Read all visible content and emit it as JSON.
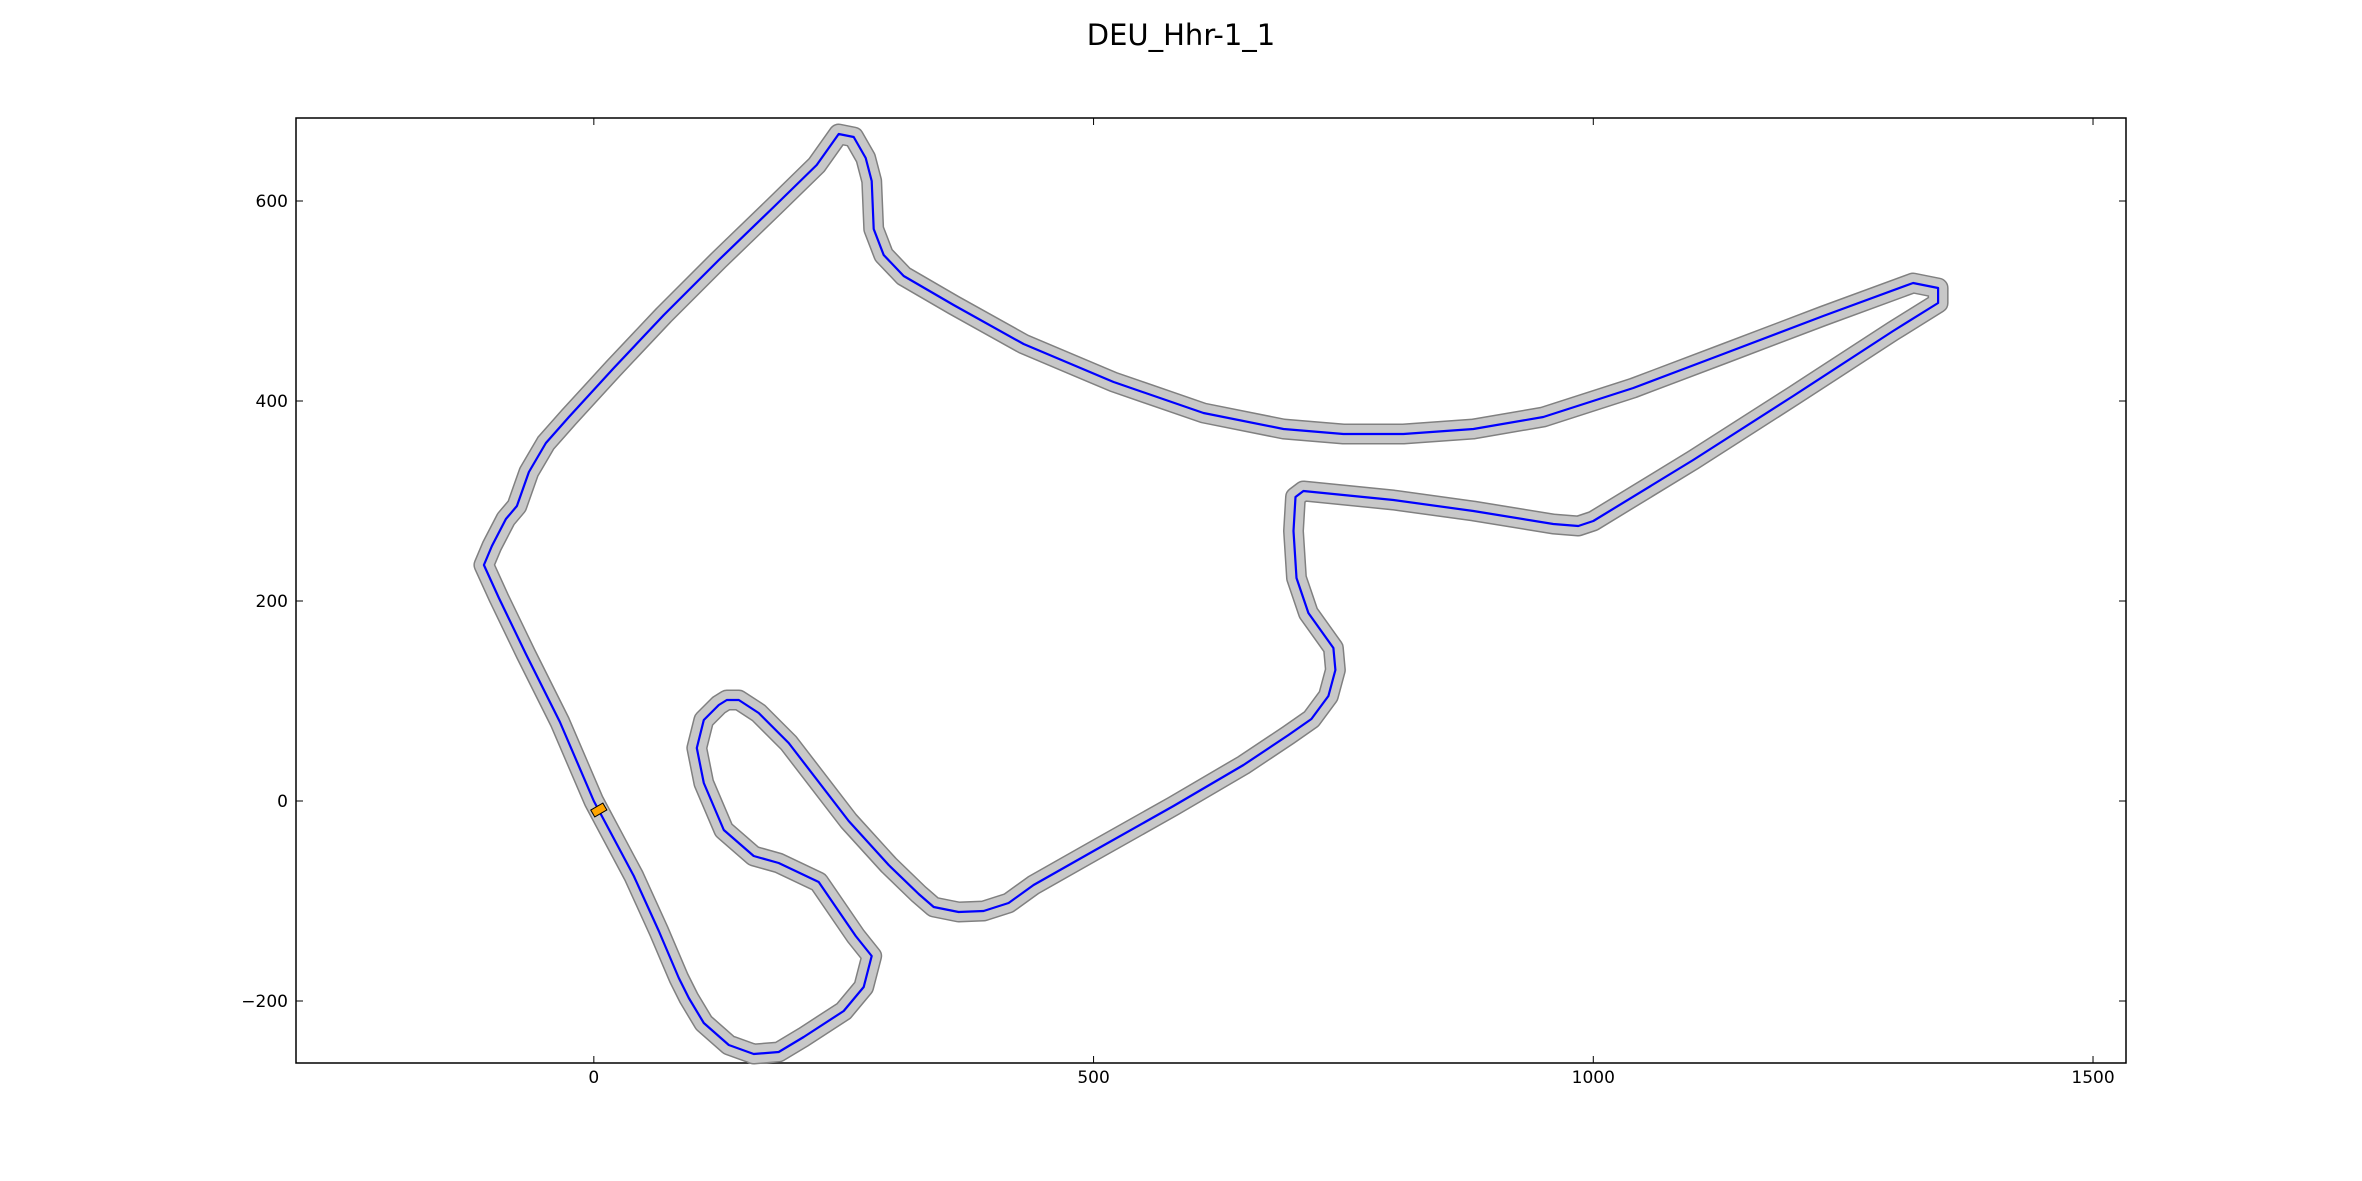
{
  "chart_data": {
    "type": "line",
    "title": "DEU_Hhr-1_1",
    "xlabel": "",
    "ylabel": "",
    "xlim": [
      -298,
      1533
    ],
    "ylim": [
      -262,
      683
    ],
    "xticks": [
      0,
      500,
      1000,
      1500
    ],
    "yticks": [
      -200,
      0,
      200,
      400,
      600
    ],
    "xtick_labels": [
      "0",
      "500",
      "1000",
      "1500"
    ],
    "ytick_labels": [
      "−200",
      "0",
      "200",
      "400",
      "600"
    ],
    "grid": false,
    "legend": "none",
    "colors": {
      "centerline": "#0000ff",
      "track_fill": "#c8c8c8",
      "track_edge": "#808080",
      "start_marker": "#ffa500"
    },
    "track_width": 18,
    "start_marker": {
      "x": 5,
      "y": -9,
      "rotation_deg": 30
    },
    "series": [
      {
        "x": [
          0,
          -34,
          -68,
          -95,
          -110,
          -102,
          -88,
          -77,
          -65,
          -48,
          -25,
          20,
          70,
          125,
          180,
          223,
          245,
          260,
          272,
          278,
          280,
          290,
          310,
          360,
          430,
          520,
          610,
          690,
          750,
          810,
          880,
          950,
          1040,
          1130,
          1230,
          1320,
          1345,
          1345,
          1300,
          1200,
          1100,
          1000,
          985,
          960,
          880,
          800,
          710,
          702,
          700,
          703,
          715,
          740,
          742,
          735,
          718,
          695,
          650,
          580,
          500,
          440,
          415,
          390,
          365,
          340,
          325,
          295,
          255,
          195,
          165,
          145,
          133,
          125,
          110,
          103,
          110,
          130,
          160,
          185,
          225,
          262,
          278,
          270,
          250,
          210,
          185,
          160,
          135,
          110,
          95,
          85,
          65,
          40,
          0
        ],
        "y": [
          0,
          79,
          147,
          203,
          236,
          255,
          282,
          295,
          329,
          358,
          384,
          433,
          486,
          541,
          594,
          636,
          667,
          664,
          643,
          620,
          572,
          546,
          525,
          496,
          457,
          419,
          388,
          372,
          367,
          367,
          372,
          384,
          413,
          447,
          485,
          518,
          513,
          498,
          470,
          405,
          341,
          280,
          275,
          277,
          290,
          301,
          310,
          304,
          270,
          223,
          188,
          153,
          131,
          105,
          82,
          66,
          36,
          -5,
          -50,
          -84,
          -102,
          -110,
          -111,
          -106,
          -93,
          -64,
          -20,
          58,
          88,
          101,
          101,
          96,
          81,
          53,
          18,
          -29,
          -55,
          -62,
          -81,
          -135,
          -155,
          -186,
          -210,
          -236,
          -251,
          -253,
          -244,
          -222,
          -197,
          -177,
          -130,
          -75,
          0
        ]
      }
    ]
  }
}
